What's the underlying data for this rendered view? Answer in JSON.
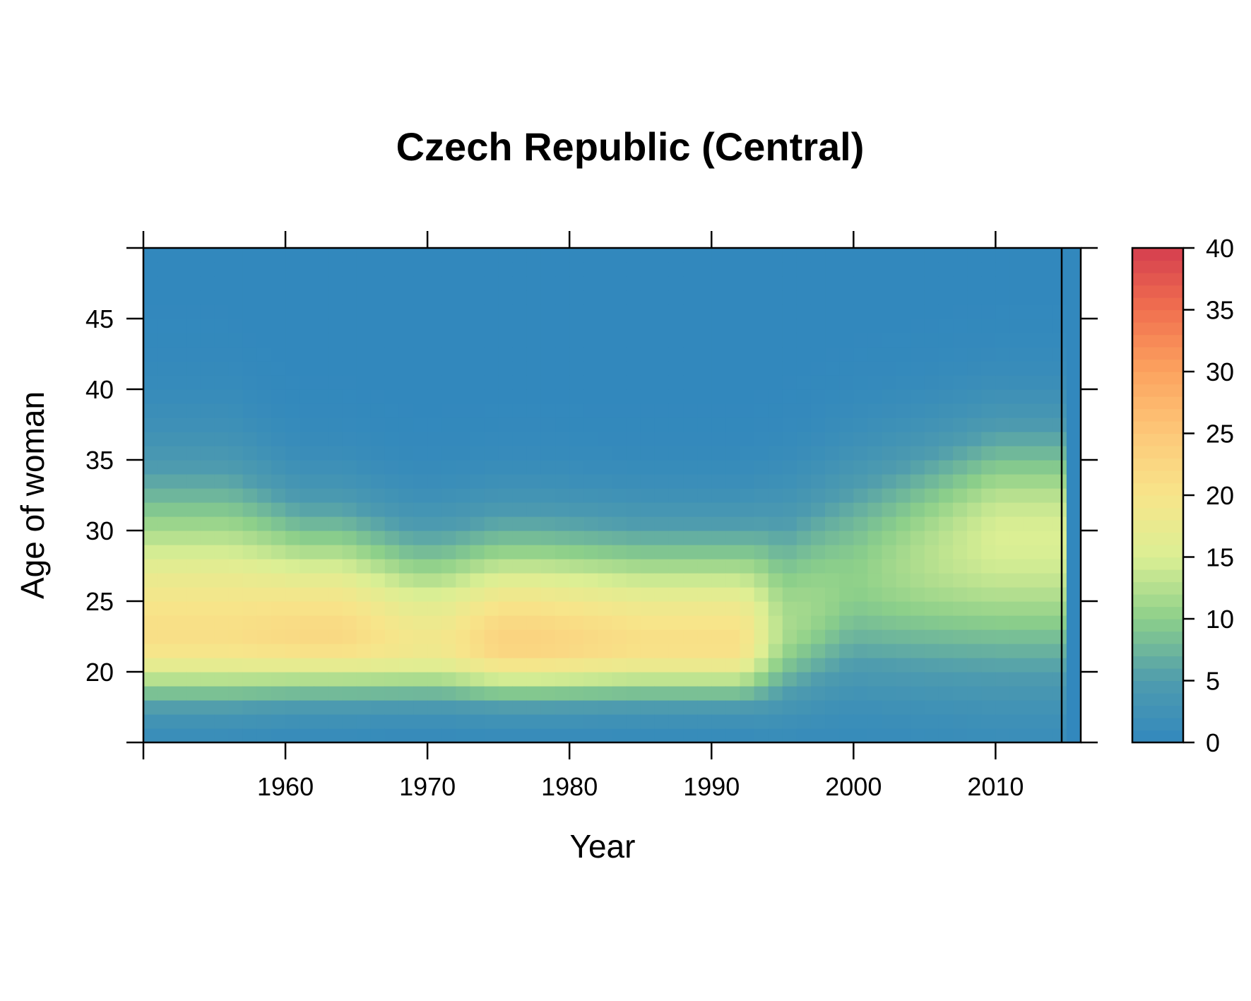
{
  "chart_data": {
    "type": "heatmap",
    "title": "Czech Republic (Central)",
    "xlabel": "Year",
    "ylabel": "Age of woman",
    "x_range": [
      1950,
      2016
    ],
    "y_range": [
      15,
      50
    ],
    "x_ticks": [
      1960,
      1970,
      1980,
      1990,
      2000,
      2010
    ],
    "y_ticks": [
      20,
      25,
      30,
      35,
      40,
      45
    ],
    "colorbar": {
      "min": 0,
      "max": 40,
      "ticks": [
        0,
        5,
        10,
        15,
        20,
        25,
        30,
        35,
        40
      ]
    },
    "colors": {
      "low": "#3288bd",
      "mid": "#fee08b",
      "high": "#d53e4f"
    },
    "data_through_year": 2015,
    "profiles": [
      {
        "period": "1950-1955",
        "peak_age": 22.5,
        "peak_value": 21,
        "spread_young": 3.0,
        "spread_old": 7.0
      },
      {
        "period": "1957-1965",
        "peak_age": 22.5,
        "peak_value": 22,
        "spread_young": 2.8,
        "spread_old": 5.5
      },
      {
        "period": "1967-1972",
        "peak_age": 22.0,
        "peak_value": 19,
        "spread_young": 2.6,
        "spread_old": 5.0
      },
      {
        "period": "1975-1979",
        "peak_age": 22.0,
        "peak_value": 23,
        "spread_young": 2.6,
        "spread_old": 5.2
      },
      {
        "period": "1983-1992",
        "peak_age": 22.0,
        "peak_value": 21,
        "spread_young": 2.6,
        "spread_old": 5.0
      },
      {
        "period": "1995",
        "peak_age": 23.0,
        "peak_value": 12,
        "spread_young": 3.5,
        "spread_old": 5.5
      },
      {
        "period": "2000",
        "peak_age": 26.5,
        "peak_value": 10,
        "spread_young": 5.0,
        "spread_old": 5.5
      },
      {
        "period": "2010",
        "peak_age": 29.5,
        "peak_value": 15,
        "spread_young": 6.5,
        "spread_old": 5.2
      }
    ]
  }
}
